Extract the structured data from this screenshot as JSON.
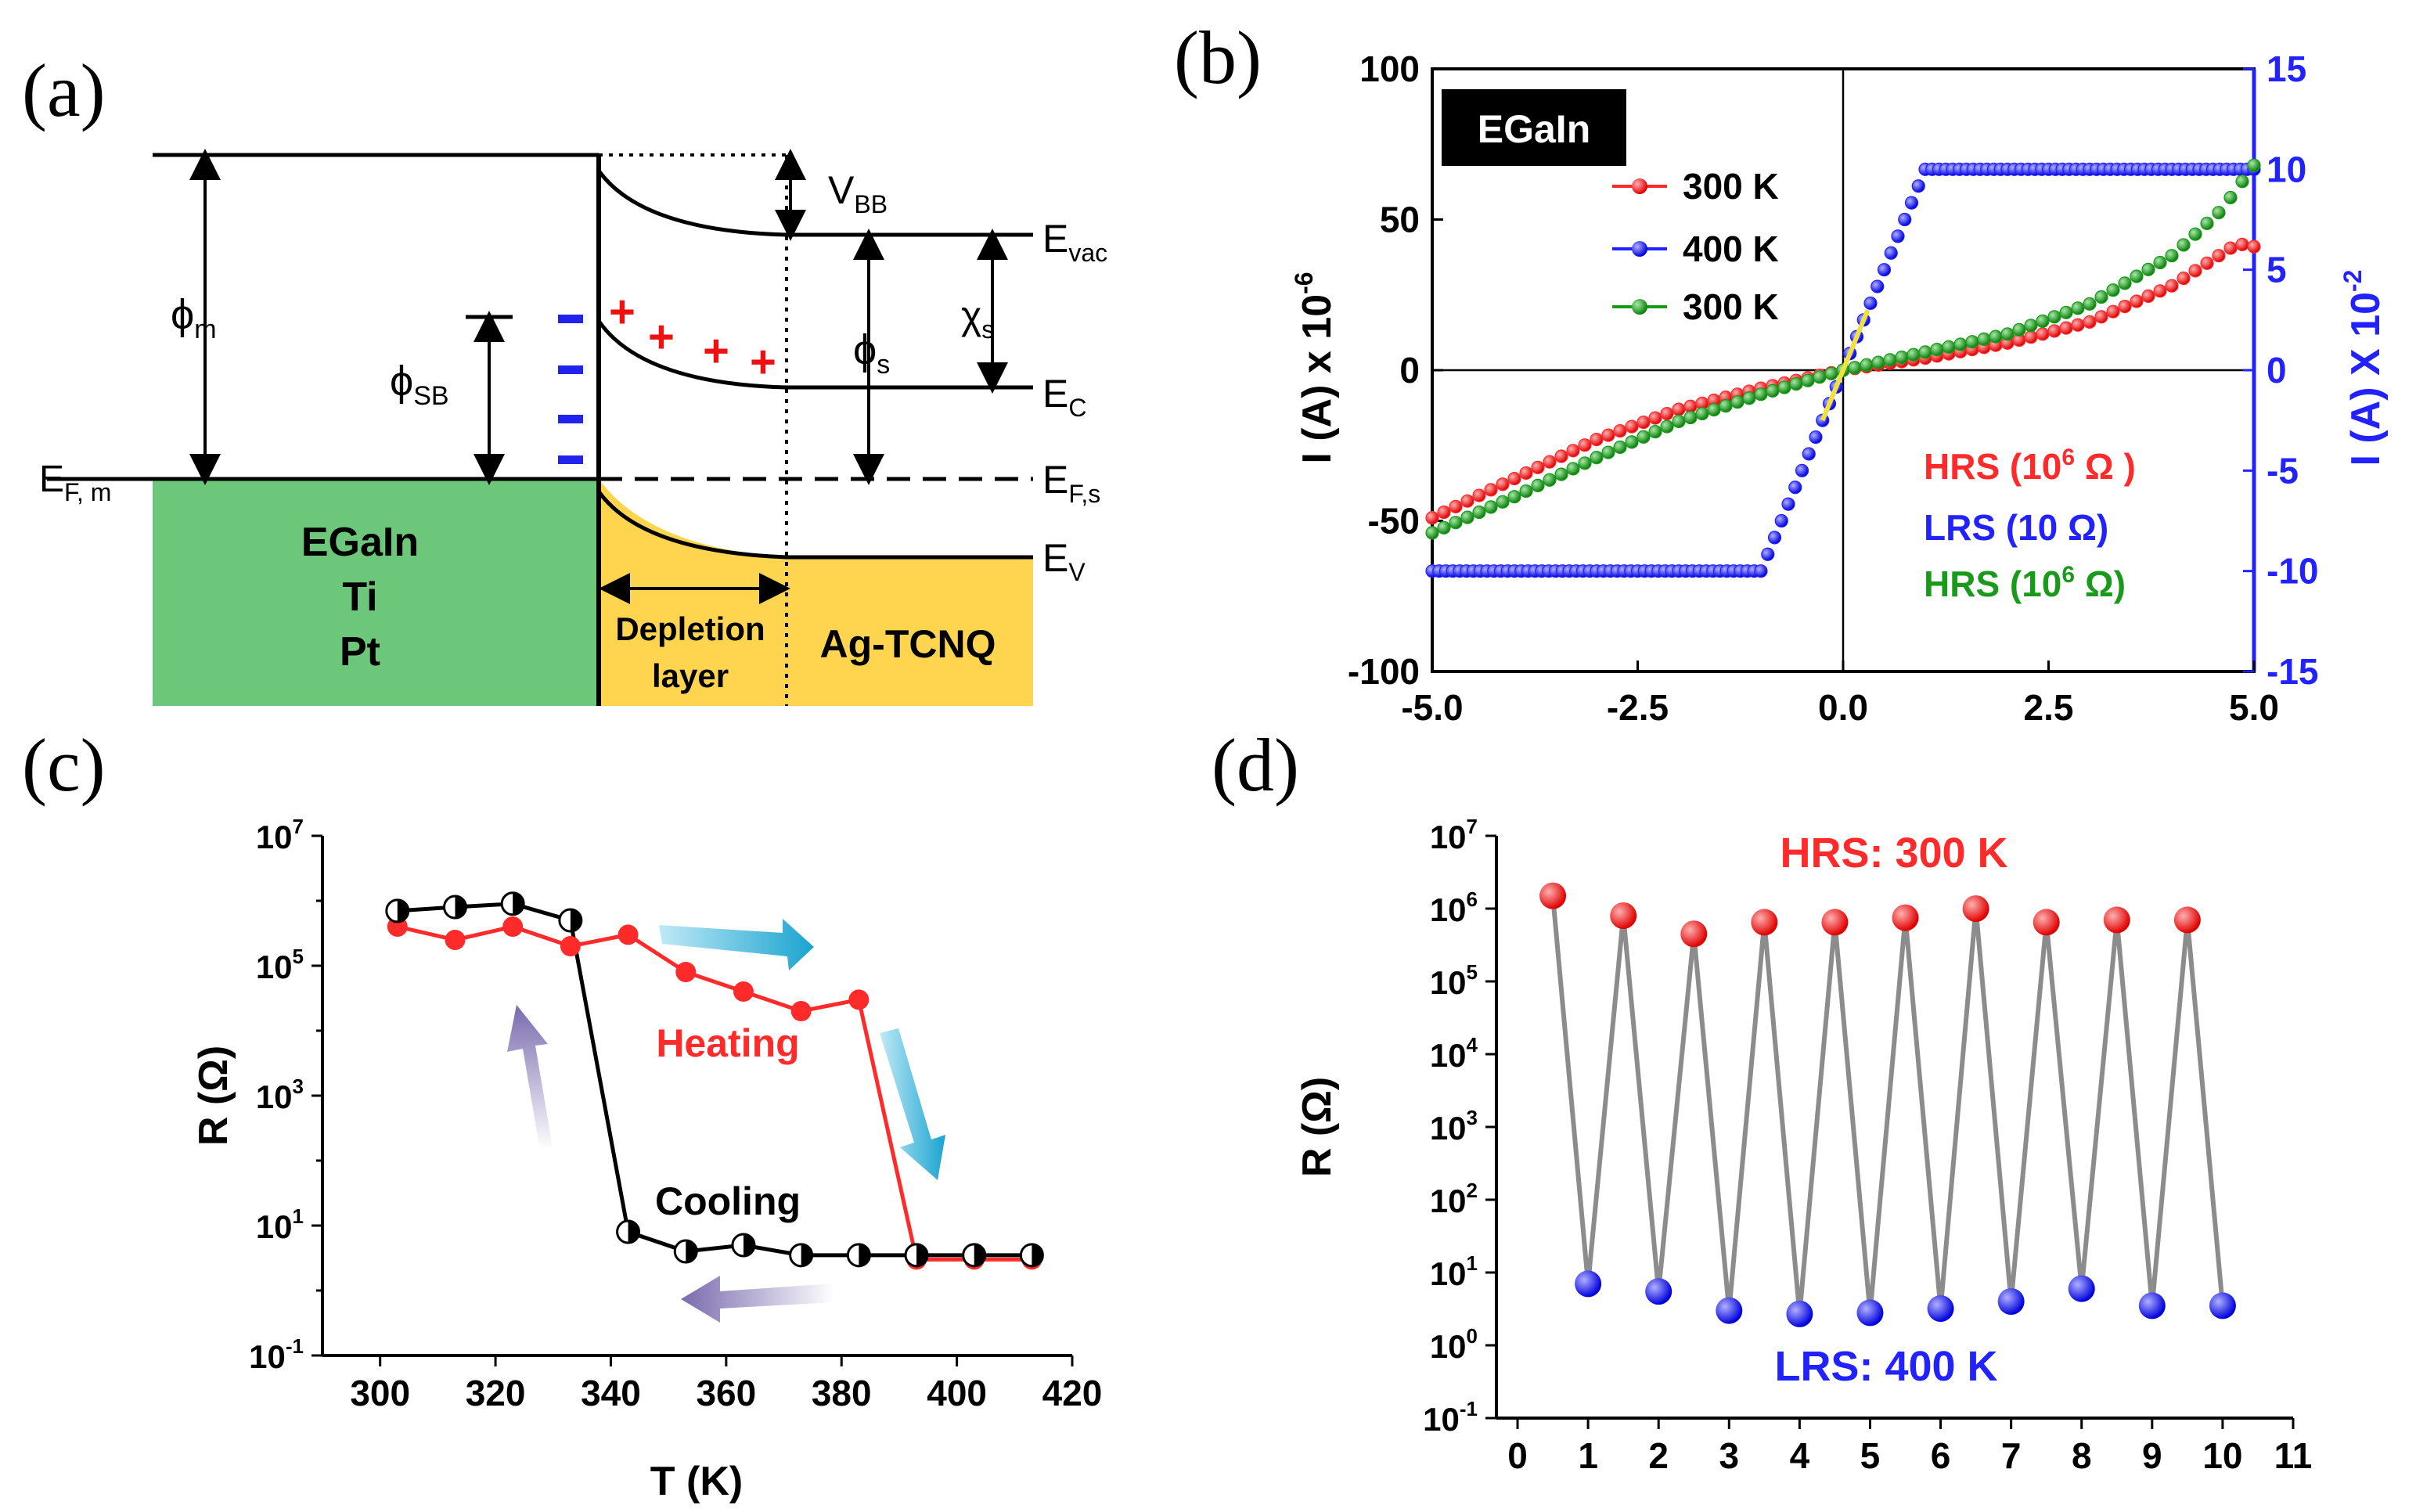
{
  "panel_labels": {
    "a": "(a)",
    "b": "(b)",
    "c": "(c)",
    "d": "(d)"
  },
  "colors": {
    "red": "#ff2a2a",
    "blue": "#2222ff",
    "green": "#1a9a1a",
    "yellow": "#f0e040",
    "depletion": "#ffd54f",
    "metal": "#6cc77a",
    "cyan_arrow": "#1ba3d0",
    "purple_arrow": "#8070b0"
  },
  "panel_a": {
    "labels": {
      "phi_m": "ϕ",
      "phi_m_sub": "m",
      "phi_sb": "ϕ",
      "phi_sb_sub": "SB",
      "phi_s": "ϕ",
      "phi_s_sub": "s",
      "chi_s": "χ",
      "chi_s_sub": "s",
      "vbb": "V",
      "vbb_sub": "BB",
      "evac": "E",
      "evac_sub": "vac",
      "ec": "E",
      "ec_sub": "C",
      "efs": "E",
      "efs_sub": "F,s",
      "ev": "E",
      "ev_sub": "V",
      "efm": "E",
      "efm_sub": "F, m",
      "metal_line1": "EGaIn",
      "metal_line2": "Ti",
      "metal_line3": "Pt",
      "depletion_line1": "Depletion",
      "depletion_line2": "layer",
      "semiconductor": "Ag-TCNQ",
      "plus": "+",
      "minus": "−"
    }
  },
  "chart_data": [
    {
      "id": "b",
      "type": "scatter",
      "title": "",
      "inset_label": "EGaIn",
      "xlabel": "",
      "ylabel": "I (A) x 10",
      "ylabel_exp": "-6",
      "ylabel_right": "I (A) X 10",
      "ylabel_right_exp": "-2",
      "xlim": [
        -5,
        5
      ],
      "ylim_left": [
        -100,
        100
      ],
      "ylim_right": [
        -15,
        15
      ],
      "x_ticks": [
        "-5.0",
        "-2.5",
        "0.0",
        "2.5",
        "5.0"
      ],
      "y_ticks_left": [
        "100",
        "50",
        "0",
        "-50",
        "-100"
      ],
      "y_ticks_right": [
        "15",
        "10",
        "5",
        "0",
        "-5",
        "-10",
        "-15"
      ],
      "legend": [
        {
          "label": "300 K",
          "color": "#ff2a2a"
        },
        {
          "label": "400 K",
          "color": "#2222ff"
        },
        {
          "label": "300 K",
          "color": "#1a9a1a"
        }
      ],
      "annotations": [
        {
          "text": "HRS (10",
          "sup": "6",
          "tail": " Ω )",
          "color": "#ff2a2a"
        },
        {
          "text": "LRS (10 Ω)",
          "sup": "",
          "tail": "",
          "color": "#2222ff"
        },
        {
          "text": "HRS (10",
          "sup": "6",
          "tail": " Ω)",
          "color": "#1a9a1a"
        }
      ],
      "series": [
        {
          "name": "300 K (red)",
          "axis": "left",
          "x": [
            -5,
            -4,
            -3,
            -2,
            -1,
            0,
            1,
            2,
            3,
            4,
            4.8,
            5
          ],
          "y": [
            -49,
            -36,
            -23,
            -13,
            -6,
            0,
            4,
            9,
            16,
            28,
            42,
            41
          ]
        },
        {
          "name": "400 K (blue)",
          "axis": "right",
          "x": [
            -5,
            -1.2,
            -1,
            0,
            1,
            1.2,
            5
          ],
          "y": [
            -10,
            -10,
            -10,
            0,
            10,
            10,
            10
          ]
        },
        {
          "name": "300 K (green)",
          "axis": "left",
          "x": [
            -5,
            -4,
            -3,
            -2,
            -1,
            0,
            1,
            2,
            3,
            4,
            4.6,
            5
          ],
          "y": [
            -54,
            -42,
            -29,
            -17,
            -8,
            0,
            6,
            12,
            22,
            38,
            53,
            68
          ]
        }
      ]
    },
    {
      "id": "c",
      "type": "line",
      "xlabel": "T (K)",
      "ylabel": "R (Ω)",
      "xlim": [
        290,
        420
      ],
      "ylim_log10": [
        -1,
        7
      ],
      "x_ticks": [
        "300",
        "320",
        "340",
        "360",
        "380",
        "400",
        "420"
      ],
      "y_ticks": [
        {
          "base": "10",
          "exp": "7"
        },
        {
          "base": "10",
          "exp": "5"
        },
        {
          "base": "10",
          "exp": "3"
        },
        {
          "base": "10",
          "exp": "1"
        },
        {
          "base": "10",
          "exp": "-1"
        }
      ],
      "labels": {
        "heating": "Heating",
        "cooling": "Cooling"
      },
      "series": [
        {
          "name": "Heating",
          "color": "#ff2a2a",
          "x": [
            303,
            313,
            323,
            333,
            343,
            353,
            363,
            373,
            383,
            393,
            403,
            413
          ],
          "y": [
            400000,
            250000,
            400000,
            200000,
            300000,
            80000,
            40000,
            20000,
            30000,
            3,
            3,
            3
          ]
        },
        {
          "name": "Cooling",
          "color": "#000000",
          "x": [
            303,
            313,
            323,
            333,
            343,
            353,
            363,
            373,
            383,
            393,
            403,
            413
          ],
          "y": [
            700000,
            800000,
            900000,
            500000,
            8,
            4,
            5,
            3.5,
            3.5,
            3.5,
            3.5,
            3.5
          ]
        }
      ]
    },
    {
      "id": "d",
      "type": "line",
      "xlabel": "",
      "ylabel": "R (Ω)",
      "xlim": [
        -0.3,
        11
      ],
      "ylim_log10": [
        -1,
        7
      ],
      "x_ticks": [
        "0",
        "1",
        "2",
        "3",
        "4",
        "5",
        "6",
        "7",
        "8",
        "9",
        "10",
        "11"
      ],
      "y_ticks": [
        {
          "base": "10",
          "exp": "7"
        },
        {
          "base": "10",
          "exp": "6"
        },
        {
          "base": "10",
          "exp": "5"
        },
        {
          "base": "10",
          "exp": "4"
        },
        {
          "base": "10",
          "exp": "3"
        },
        {
          "base": "10",
          "exp": "2"
        },
        {
          "base": "10",
          "exp": "1"
        },
        {
          "base": "10",
          "exp": "0"
        },
        {
          "base": "10",
          "exp": "-1"
        }
      ],
      "labels": {
        "hrs": "HRS: 300 K",
        "lrs": "LRS: 400 K"
      },
      "series": [
        {
          "name": "HRS",
          "color": "#ff2a2a",
          "x": [
            0.5,
            1.5,
            2.5,
            3.5,
            4.5,
            5.5,
            6.5,
            7.5,
            8.5,
            9.5
          ],
          "y": [
            1500000,
            800000,
            450000,
            650000,
            650000,
            750000,
            1000000,
            650000,
            700000,
            700000
          ]
        },
        {
          "name": "LRS",
          "color": "#2222ff",
          "x": [
            1,
            2,
            3,
            4,
            5,
            6,
            7,
            8,
            9,
            10
          ],
          "y": [
            7,
            5.5,
            3,
            2.7,
            2.8,
            3.2,
            4,
            6,
            3.5,
            3.5
          ]
        }
      ]
    }
  ]
}
